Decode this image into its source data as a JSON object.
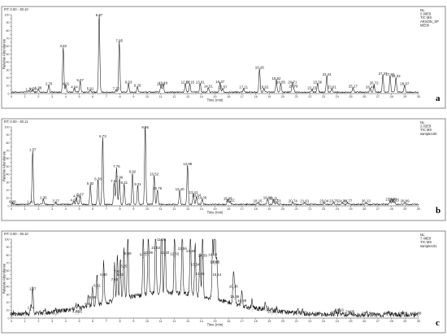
{
  "chart_data": [
    {
      "type": "line",
      "panel_label": "a",
      "rt_label": "RT: 0.00 - 30.10",
      "info": [
        "NL:",
        "2.90E8",
        "TIC MS",
        "ARSON_SP",
        "ME06"
      ],
      "xlabel": "Time (min)",
      "ylabel": "Relative Abundance",
      "xlim": [
        0,
        30
      ],
      "ylim": [
        0,
        100
      ],
      "x_ticks": [
        0,
        1,
        2,
        3,
        4,
        5,
        6,
        7,
        8,
        9,
        10,
        11,
        12,
        13,
        14,
        15,
        16,
        17,
        18,
        19,
        20,
        21,
        22,
        23,
        24,
        25,
        26,
        27,
        28,
        29,
        30
      ],
      "y_ticks": [
        0,
        5,
        10,
        15,
        20,
        25,
        30,
        35,
        40,
        45,
        50,
        55,
        60,
        65,
        70,
        75,
        80,
        85,
        90,
        95,
        100
      ],
      "peaks": [
        {
          "label": "1.30",
          "x": 1.3,
          "y": 2
        },
        {
          "label": "1.58",
          "x": 1.58,
          "y": 3
        },
        {
          "label": "1.98",
          "x": 1.98,
          "y": 4
        },
        {
          "label": "2.76",
          "x": 2.76,
          "y": 9
        },
        {
          "label": "3.82",
          "x": 3.82,
          "y": 57
        },
        {
          "label": "4.01",
          "x": 4.01,
          "y": 9
        },
        {
          "label": "4.64",
          "x": 4.64,
          "y": 5
        },
        {
          "label": "5.07",
          "x": 5.07,
          "y": 14
        },
        {
          "label": "5.81",
          "x": 5.81,
          "y": 3
        },
        {
          "label": "6.47",
          "x": 6.47,
          "y": 100
        },
        {
          "label": "7.72",
          "x": 7.72,
          "y": 3
        },
        {
          "label": "7.95",
          "x": 7.95,
          "y": 64
        },
        {
          "label": "8.63",
          "x": 8.63,
          "y": 11
        },
        {
          "label": "9.29",
          "x": 9.29,
          "y": 7
        },
        {
          "label": "11.02",
          "x": 11.02,
          "y": 9
        },
        {
          "label": "11.18",
          "x": 11.18,
          "y": 10
        },
        {
          "label": "12.82",
          "x": 12.82,
          "y": 11
        },
        {
          "label": "13.15",
          "x": 13.15,
          "y": 11
        },
        {
          "label": "13.91",
          "x": 13.91,
          "y": 11
        },
        {
          "label": "14.51",
          "x": 14.51,
          "y": 6
        },
        {
          "label": "15.37",
          "x": 15.37,
          "y": 12
        },
        {
          "label": "15.57",
          "x": 15.57,
          "y": 5
        },
        {
          "label": "17.11",
          "x": 17.11,
          "y": 5
        },
        {
          "label": "18.28",
          "x": 18.28,
          "y": 30
        },
        {
          "label": "18.62",
          "x": 18.62,
          "y": 5
        },
        {
          "label": "19.52",
          "x": 19.52,
          "y": 16
        },
        {
          "label": "19.85",
          "x": 19.85,
          "y": 11
        },
        {
          "label": "20.71",
          "x": 20.71,
          "y": 11
        },
        {
          "label": "20.78",
          "x": 20.78,
          "y": 6
        },
        {
          "label": "22.15",
          "x": 22.15,
          "y": 4
        },
        {
          "label": "22.56",
          "x": 22.56,
          "y": 11
        },
        {
          "label": "23.24",
          "x": 23.24,
          "y": 21
        },
        {
          "label": "23.61",
          "x": 23.61,
          "y": 5
        },
        {
          "label": "25.17",
          "x": 25.17,
          "y": 6
        },
        {
          "label": "26.44",
          "x": 26.44,
          "y": 5
        },
        {
          "label": "26.72",
          "x": 26.72,
          "y": 10
        },
        {
          "label": "27.37",
          "x": 27.37,
          "y": 22
        },
        {
          "label": "27.90",
          "x": 27.9,
          "y": 21
        },
        {
          "label": "28.33",
          "x": 28.33,
          "y": 19
        },
        {
          "label": "28.97",
          "x": 28.97,
          "y": 9
        }
      ]
    },
    {
      "type": "line",
      "panel_label": "b",
      "rt_label": "RT: 0.00 - 30.11",
      "info": [
        "NL:",
        "2.02E8",
        "TIC MS",
        "sample100"
      ],
      "xlabel": "Time (min)",
      "ylabel": "Relative Abundance",
      "xlim": [
        0,
        30
      ],
      "ylim": [
        0,
        100
      ],
      "x_ticks": [
        0,
        1,
        2,
        3,
        4,
        5,
        6,
        7,
        8,
        9,
        10,
        11,
        12,
        13,
        14,
        15,
        16,
        17,
        18,
        19,
        20,
        21,
        22,
        23,
        24,
        25,
        26,
        27,
        28,
        29,
        30
      ],
      "y_ticks": [
        0,
        5,
        10,
        15,
        20,
        25,
        30,
        35,
        40,
        45,
        50,
        55,
        60,
        65,
        70,
        75,
        80,
        85,
        90,
        95,
        100
      ],
      "peaks": [
        {
          "label": "0.08",
          "x": 0.08,
          "y": 2
        },
        {
          "label": "1.41",
          "x": 1.41,
          "y": 2
        },
        {
          "label": "1.57",
          "x": 1.57,
          "y": 68
        },
        {
          "label": "2.36",
          "x": 2.36,
          "y": 7
        },
        {
          "label": "3.27",
          "x": 3.27,
          "y": 3
        },
        {
          "label": "4.60",
          "x": 4.6,
          "y": 4
        },
        {
          "label": "4.80",
          "x": 4.8,
          "y": 9
        },
        {
          "label": "5.07",
          "x": 5.07,
          "y": 11
        },
        {
          "label": "5.82",
          "x": 5.82,
          "y": 25
        },
        {
          "label": "6.38",
          "x": 6.38,
          "y": 31
        },
        {
          "label": "6.73",
          "x": 6.73,
          "y": 85
        },
        {
          "label": "7.57",
          "x": 7.57,
          "y": 28
        },
        {
          "label": "7.75",
          "x": 7.75,
          "y": 47
        },
        {
          "label": "7.96",
          "x": 7.96,
          "y": 33
        },
        {
          "label": "8.92",
          "x": 8.92,
          "y": 40
        },
        {
          "label": "8.31",
          "x": 8.31,
          "y": 26
        },
        {
          "label": "9.31",
          "x": 9.31,
          "y": 24
        },
        {
          "label": "9.86",
          "x": 9.86,
          "y": 100
        },
        {
          "label": "10.52",
          "x": 10.52,
          "y": 37
        },
        {
          "label": "10.76",
          "x": 10.76,
          "y": 19
        },
        {
          "label": "12.40",
          "x": 12.4,
          "y": 18
        },
        {
          "label": "12.98",
          "x": 12.98,
          "y": 50
        },
        {
          "label": "13.41",
          "x": 13.41,
          "y": 14
        },
        {
          "label": "13.64",
          "x": 13.64,
          "y": 10
        },
        {
          "label": "14.06",
          "x": 14.06,
          "y": 7
        },
        {
          "label": "15.95",
          "x": 15.95,
          "y": 6
        },
        {
          "label": "16.12",
          "x": 16.12,
          "y": 4
        },
        {
          "label": "18.15",
          "x": 18.15,
          "y": 3
        },
        {
          "label": "18.88",
          "x": 18.88,
          "y": 7
        },
        {
          "label": "19.31",
          "x": 19.31,
          "y": 6
        },
        {
          "label": "19.53",
          "x": 19.53,
          "y": 3
        },
        {
          "label": "20.74",
          "x": 20.74,
          "y": 3
        },
        {
          "label": "21.61",
          "x": 21.61,
          "y": 3
        },
        {
          "label": "23.04",
          "x": 23.04,
          "y": 3
        },
        {
          "label": "23.75",
          "x": 23.75,
          "y": 3
        },
        {
          "label": "24.39",
          "x": 24.39,
          "y": 3
        },
        {
          "label": "24.77",
          "x": 24.77,
          "y": 3
        },
        {
          "label": "26.13",
          "x": 26.13,
          "y": 3
        },
        {
          "label": "27.90",
          "x": 27.9,
          "y": 5
        },
        {
          "label": "28.09",
          "x": 28.09,
          "y": 5
        },
        {
          "label": "28.23",
          "x": 28.23,
          "y": 4
        },
        {
          "label": "28.99",
          "x": 28.99,
          "y": 3
        }
      ]
    },
    {
      "type": "line",
      "panel_label": "c",
      "rt_label": "RT: 0.00 - 30.10",
      "info": [
        "NL:",
        "7.46E8",
        "TIC MS",
        "sample101"
      ],
      "xlabel": "Time (min)",
      "ylabel": "Relative Abundance",
      "xlim": [
        0,
        30
      ],
      "ylim": [
        0,
        100
      ],
      "x_ticks": [
        0,
        1,
        2,
        3,
        4,
        5,
        6,
        7,
        8,
        9,
        10,
        11,
        12,
        13,
        14,
        15,
        16,
        17,
        18,
        19,
        20,
        21,
        22,
        23,
        24,
        25,
        26,
        27,
        28,
        29,
        30
      ],
      "y_ticks": [
        0,
        5,
        10,
        15,
        20,
        25,
        30,
        35,
        40,
        45,
        50,
        55,
        60,
        65,
        70,
        75,
        80,
        85,
        90,
        95,
        100
      ],
      "peaks": [
        {
          "label": "0.13",
          "x": 0.13,
          "y": 2
        },
        {
          "label": "1.05",
          "x": 1.05,
          "y": 2
        },
        {
          "label": "1.44",
          "x": 1.44,
          "y": 10
        },
        {
          "label": "1.57",
          "x": 1.57,
          "y": 34
        },
        {
          "label": "2.48",
          "x": 2.48,
          "y": 3
        },
        {
          "label": "3.27",
          "x": 3.27,
          "y": 3
        },
        {
          "label": "4.75",
          "x": 4.75,
          "y": 5
        },
        {
          "label": "4.95",
          "x": 4.95,
          "y": 5
        },
        {
          "label": "5.67",
          "x": 5.67,
          "y": 15
        },
        {
          "label": "5.98",
          "x": 5.98,
          "y": 23
        },
        {
          "label": "6.31",
          "x": 6.31,
          "y": 38
        },
        {
          "label": "6.80",
          "x": 6.8,
          "y": 52
        },
        {
          "label": "7.60",
          "x": 7.6,
          "y": 46
        },
        {
          "label": "7.81",
          "x": 7.81,
          "y": 56
        },
        {
          "label": "8.03",
          "x": 8.03,
          "y": 52
        },
        {
          "label": "8.58",
          "x": 8.58,
          "y": 79
        },
        {
          "label": "8.29",
          "x": 8.29,
          "y": 63
        },
        {
          "label": "9.72",
          "x": 9.72,
          "y": 77
        },
        {
          "label": "10.09",
          "x": 10.09,
          "y": 80
        },
        {
          "label": "10.63",
          "x": 10.63,
          "y": 86
        },
        {
          "label": "11.06",
          "x": 11.06,
          "y": 100
        },
        {
          "label": "11.32",
          "x": 11.32,
          "y": 80
        },
        {
          "label": "12.02",
          "x": 12.02,
          "y": 78
        },
        {
          "label": "12.59",
          "x": 12.59,
          "y": 85
        },
        {
          "label": "13.19",
          "x": 13.19,
          "y": 82
        },
        {
          "label": "13.54",
          "x": 13.54,
          "y": 65
        },
        {
          "label": "13.89",
          "x": 13.89,
          "y": 53
        },
        {
          "label": "14.09",
          "x": 14.09,
          "y": 76
        },
        {
          "label": "14.83",
          "x": 14.83,
          "y": 77
        },
        {
          "label": "14.96",
          "x": 14.96,
          "y": 68
        },
        {
          "label": "15.02",
          "x": 15.02,
          "y": 68
        },
        {
          "label": "15.14",
          "x": 15.14,
          "y": 52
        },
        {
          "label": "16.36",
          "x": 16.36,
          "y": 37
        },
        {
          "label": "16.46",
          "x": 16.46,
          "y": 24
        },
        {
          "label": "16.98",
          "x": 16.98,
          "y": 19
        },
        {
          "label": "17.73",
          "x": 17.73,
          "y": 9
        },
        {
          "label": "18.71",
          "x": 18.71,
          "y": 10
        },
        {
          "label": "19.19",
          "x": 19.19,
          "y": 5
        },
        {
          "label": "19.53",
          "x": 19.53,
          "y": 5
        },
        {
          "label": "21.13",
          "x": 21.13,
          "y": 4
        },
        {
          "label": "21.43",
          "x": 21.43,
          "y": 4
        },
        {
          "label": "23.87",
          "x": 23.87,
          "y": 4
        },
        {
          "label": "24.16",
          "x": 24.16,
          "y": 7
        },
        {
          "label": "24.95",
          "x": 24.95,
          "y": 5
        },
        {
          "label": "26.15",
          "x": 26.15,
          "y": 3
        },
        {
          "label": "27.78",
          "x": 27.78,
          "y": 3
        },
        {
          "label": "28.85",
          "x": 28.85,
          "y": 3
        },
        {
          "label": "29.88",
          "x": 29.88,
          "y": 3
        }
      ]
    }
  ]
}
